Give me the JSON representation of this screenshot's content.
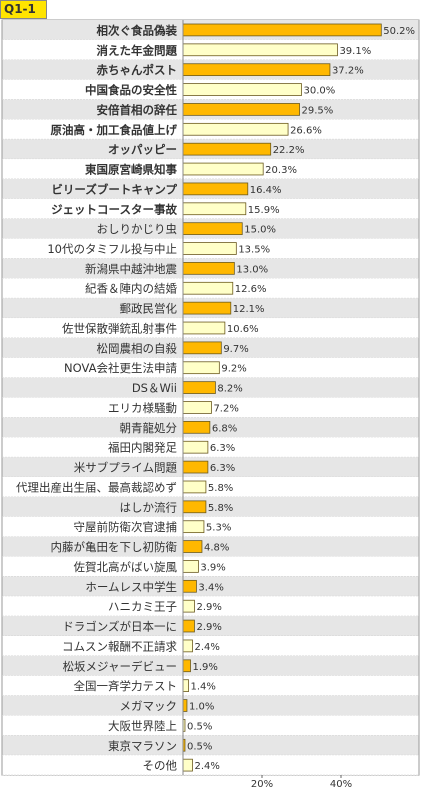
{
  "badge": "Q1-1",
  "colors": {
    "bar_strong": "#FFB800",
    "bar_light": "#FFFFC8",
    "bar_stroke": "#6B5A1E",
    "row_alt": "#E6E6E6",
    "row_base": "#FFFFFF",
    "grid": "#000000",
    "text": "#333333"
  },
  "chart_data": {
    "type": "bar",
    "orientation": "horizontal",
    "xlim": [
      0,
      50
    ],
    "x_ticks": [
      {
        "value": 20,
        "label": "20%"
      },
      {
        "value": 40,
        "label": "40%"
      }
    ],
    "grid": "row bands",
    "categories": [
      {
        "label": "相次ぐ食品偽装",
        "value": 50.2,
        "value_label": "50.2%",
        "bold": true,
        "highlight": true
      },
      {
        "label": "消えた年金問題",
        "value": 39.1,
        "value_label": "39.1%",
        "bold": true,
        "highlight": false
      },
      {
        "label": "赤ちゃんポスト",
        "value": 37.2,
        "value_label": "37.2%",
        "bold": true,
        "highlight": true
      },
      {
        "label": "中国食品の安全性",
        "value": 30.0,
        "value_label": "30.0%",
        "bold": true,
        "highlight": false
      },
      {
        "label": "安倍首相の辞任",
        "value": 29.5,
        "value_label": "29.5%",
        "bold": true,
        "highlight": true
      },
      {
        "label": "原油高・加工食品値上げ",
        "value": 26.6,
        "value_label": "26.6%",
        "bold": true,
        "highlight": false
      },
      {
        "label": "オッパッピー",
        "value": 22.2,
        "value_label": "22.2%",
        "bold": true,
        "highlight": true
      },
      {
        "label": "東国原宮崎県知事",
        "value": 20.3,
        "value_label": "20.3%",
        "bold": true,
        "highlight": false
      },
      {
        "label": "ビリーズブートキャンプ",
        "value": 16.4,
        "value_label": "16.4%",
        "bold": true,
        "highlight": true
      },
      {
        "label": "ジェットコースター事故",
        "value": 15.9,
        "value_label": "15.9%",
        "bold": true,
        "highlight": false
      },
      {
        "label": "おしりかじり虫",
        "value": 15.0,
        "value_label": "15.0%",
        "bold": false,
        "highlight": true
      },
      {
        "label": "10代のタミフル投与中止",
        "value": 13.5,
        "value_label": "13.5%",
        "bold": false,
        "highlight": false
      },
      {
        "label": "新潟県中越沖地震",
        "value": 13.0,
        "value_label": "13.0%",
        "bold": false,
        "highlight": true
      },
      {
        "label": "紀香＆陣内の結婚",
        "value": 12.6,
        "value_label": "12.6%",
        "bold": false,
        "highlight": false
      },
      {
        "label": "郵政民営化",
        "value": 12.1,
        "value_label": "12.1%",
        "bold": false,
        "highlight": true
      },
      {
        "label": "佐世保散弾銃乱射事件",
        "value": 10.6,
        "value_label": "10.6%",
        "bold": false,
        "highlight": false
      },
      {
        "label": "松岡農相の自殺",
        "value": 9.7,
        "value_label": "9.7%",
        "bold": false,
        "highlight": true
      },
      {
        "label": "NOVA会社更生法申請",
        "value": 9.2,
        "value_label": "9.2%",
        "bold": false,
        "highlight": false
      },
      {
        "label": "DS＆Wii",
        "value": 8.2,
        "value_label": "8.2%",
        "bold": false,
        "highlight": true
      },
      {
        "label": "エリカ様騒動",
        "value": 7.2,
        "value_label": "7.2%",
        "bold": false,
        "highlight": false
      },
      {
        "label": "朝青龍処分",
        "value": 6.8,
        "value_label": "6.8%",
        "bold": false,
        "highlight": true
      },
      {
        "label": "福田内閣発足",
        "value": 6.3,
        "value_label": "6.3%",
        "bold": false,
        "highlight": false
      },
      {
        "label": "米サブプライム問題",
        "value": 6.3,
        "value_label": "6.3%",
        "bold": false,
        "highlight": true
      },
      {
        "label": "代理出産出生届、最高裁認めず",
        "value": 5.8,
        "value_label": "5.8%",
        "bold": false,
        "highlight": false
      },
      {
        "label": "はしか流行",
        "value": 5.8,
        "value_label": "5.8%",
        "bold": false,
        "highlight": true
      },
      {
        "label": "守屋前防衛次官逮捕",
        "value": 5.3,
        "value_label": "5.3%",
        "bold": false,
        "highlight": false
      },
      {
        "label": "内藤が亀田を下し初防衛",
        "value": 4.8,
        "value_label": "4.8%",
        "bold": false,
        "highlight": true
      },
      {
        "label": "佐賀北高がばい旋風",
        "value": 3.9,
        "value_label": "3.9%",
        "bold": false,
        "highlight": false
      },
      {
        "label": "ホームレス中学生",
        "value": 3.4,
        "value_label": "3.4%",
        "bold": false,
        "highlight": true
      },
      {
        "label": "ハニカミ王子",
        "value": 2.9,
        "value_label": "2.9%",
        "bold": false,
        "highlight": false
      },
      {
        "label": "ドラゴンズが日本一に",
        "value": 2.9,
        "value_label": "2.9%",
        "bold": false,
        "highlight": true
      },
      {
        "label": "コムスン報酬不正請求",
        "value": 2.4,
        "value_label": "2.4%",
        "bold": false,
        "highlight": false
      },
      {
        "label": "松坂メジャーデビュー",
        "value": 1.9,
        "value_label": "1.9%",
        "bold": false,
        "highlight": true
      },
      {
        "label": "全国一斉学力テスト",
        "value": 1.4,
        "value_label": "1.4%",
        "bold": false,
        "highlight": false
      },
      {
        "label": "メガマック",
        "value": 1.0,
        "value_label": "1.0%",
        "bold": false,
        "highlight": true
      },
      {
        "label": "大阪世界陸上",
        "value": 0.5,
        "value_label": "0.5%",
        "bold": false,
        "highlight": false
      },
      {
        "label": "東京マラソン",
        "value": 0.5,
        "value_label": "0.5%",
        "bold": false,
        "highlight": true
      },
      {
        "label": "その他",
        "value": 2.4,
        "value_label": "2.4%",
        "bold": false,
        "highlight": false
      }
    ]
  }
}
